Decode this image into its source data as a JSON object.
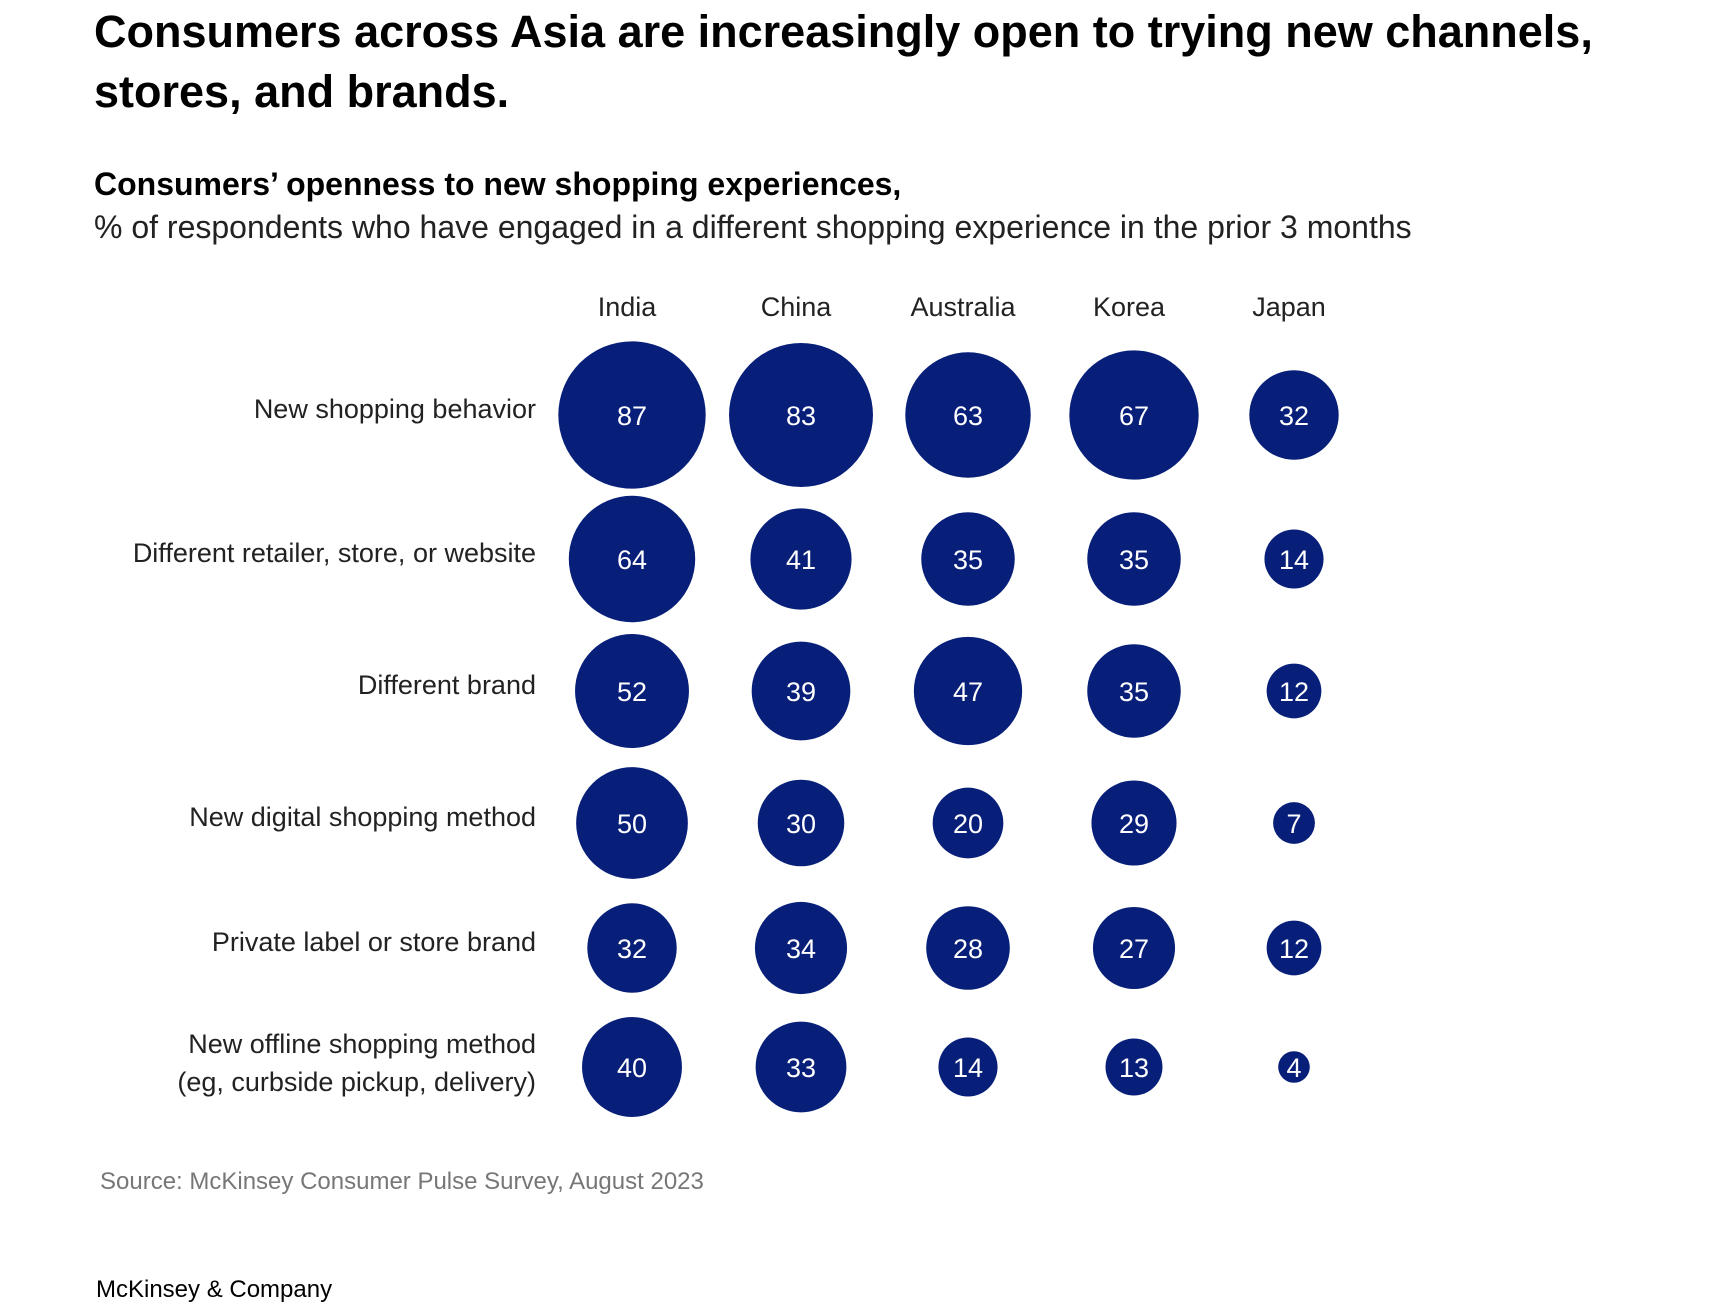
{
  "title": "Consumers across Asia are increasingly open to trying new channels, stores, and brands.",
  "subtitle": "Consumers’ openness to new shopping experiences,",
  "subtitle_unit": "% of respondents who have engaged in a different shopping experience in the prior 3 months",
  "source": "Source: McKinsey Consumer Pulse Survey, August 2023",
  "footer": "McKinsey & Company",
  "colors": {
    "bubble": "#071f78",
    "bubble_text": "#ffffff"
  },
  "chart_data": {
    "type": "bubble-matrix",
    "title": "Consumers’ openness to new shopping experiences,",
    "unit": "% of respondents who have engaged in a different shopping experience in the prior 3 months",
    "columns": [
      "India",
      "China",
      "Australia",
      "Korea",
      "Japan"
    ],
    "rows": [
      {
        "label": [
          "New shopping behavior"
        ],
        "values": [
          87,
          83,
          63,
          67,
          32
        ]
      },
      {
        "label": [
          "Different retailer, store, or website"
        ],
        "values": [
          64,
          41,
          35,
          35,
          14
        ]
      },
      {
        "label": [
          "Different brand"
        ],
        "values": [
          52,
          39,
          47,
          35,
          12
        ]
      },
      {
        "label": [
          "New digital shopping method"
        ],
        "values": [
          50,
          30,
          20,
          29,
          7
        ]
      },
      {
        "label": [
          "Private label or store brand"
        ],
        "values": [
          32,
          34,
          28,
          27,
          12
        ]
      },
      {
        "label": [
          "New offline shopping method",
          "(eg, curbside pickup, delivery)"
        ],
        "values": [
          40,
          33,
          14,
          13,
          4
        ]
      }
    ],
    "bubble_size_encoding": "area proportional to value"
  }
}
